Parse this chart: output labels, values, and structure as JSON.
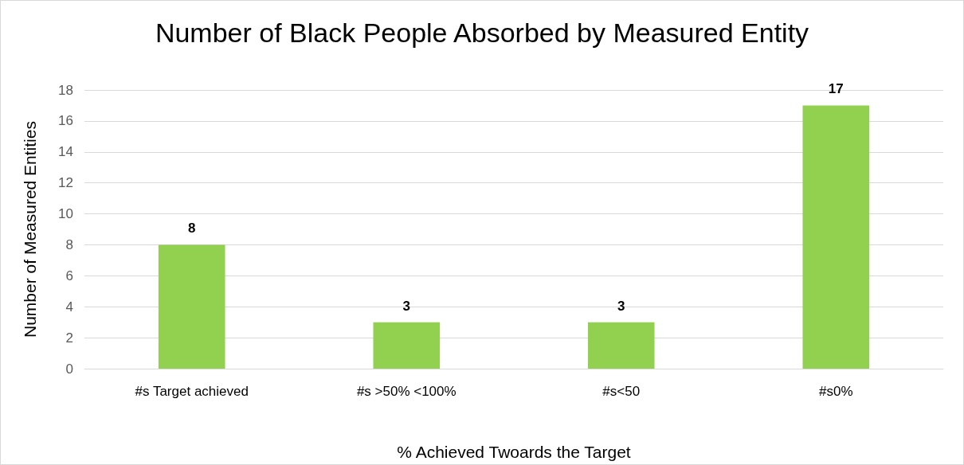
{
  "chart_data": {
    "type": "bar",
    "title": "Number of Black People Absorbed by Measured Entity",
    "xlabel": "% Achieved Twoards the Target",
    "ylabel": "Number of Measured Entities",
    "categories": [
      "#s Target achieved",
      "#s >50% <100%",
      "#s<50",
      "#s0%"
    ],
    "values": [
      8,
      3,
      3,
      17
    ],
    "color": "#92d050",
    "ylim": [
      0,
      18
    ],
    "yticks": [
      0,
      2,
      4,
      6,
      8,
      10,
      12,
      14,
      16,
      18
    ],
    "grid": "y",
    "data_labels": true
  }
}
